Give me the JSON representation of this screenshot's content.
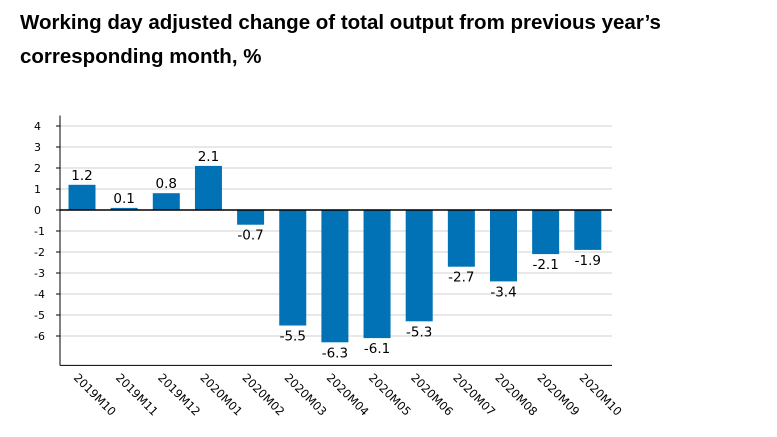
{
  "title": "Working day adjusted change of total output from previous year’s corresponding month, %",
  "colors": {
    "bar": "#0072b5",
    "gridline": "#d0d0d0",
    "axis": "#000000"
  },
  "chart_data": {
    "type": "bar",
    "categories": [
      "2019M10",
      "2019M11",
      "2019M12",
      "2020M01",
      "2020M02",
      "2020M03",
      "2020M04",
      "2020M05",
      "2020M06",
      "2020M07",
      "2020M08",
      "2020M09",
      "2020M10"
    ],
    "values": [
      1.2,
      0.1,
      0.8,
      2.1,
      -0.7,
      -5.5,
      -6.3,
      -6.1,
      -5.3,
      -2.7,
      -3.4,
      -2.1,
      -1.9
    ],
    "data_labels": [
      "1.2",
      "0.1",
      "0.8",
      "2.1",
      "-0.7",
      "-5.5",
      "-6.3",
      "-6.1",
      "-5.3",
      "-2.7",
      "-3.4",
      "-2.1",
      "-1.9"
    ],
    "y_ticks": [
      4,
      3,
      2,
      1,
      0,
      -1,
      -2,
      -3,
      -4,
      -5,
      -6
    ],
    "y_tick_labels": [
      "4",
      "3",
      "2",
      "1",
      "0",
      "-1",
      "-2",
      "-3",
      "-4",
      "-5",
      "-6"
    ],
    "ylim": [
      -7.4,
      4.5
    ],
    "grid": true,
    "legend": "none",
    "xlabel": "",
    "ylabel": ""
  }
}
